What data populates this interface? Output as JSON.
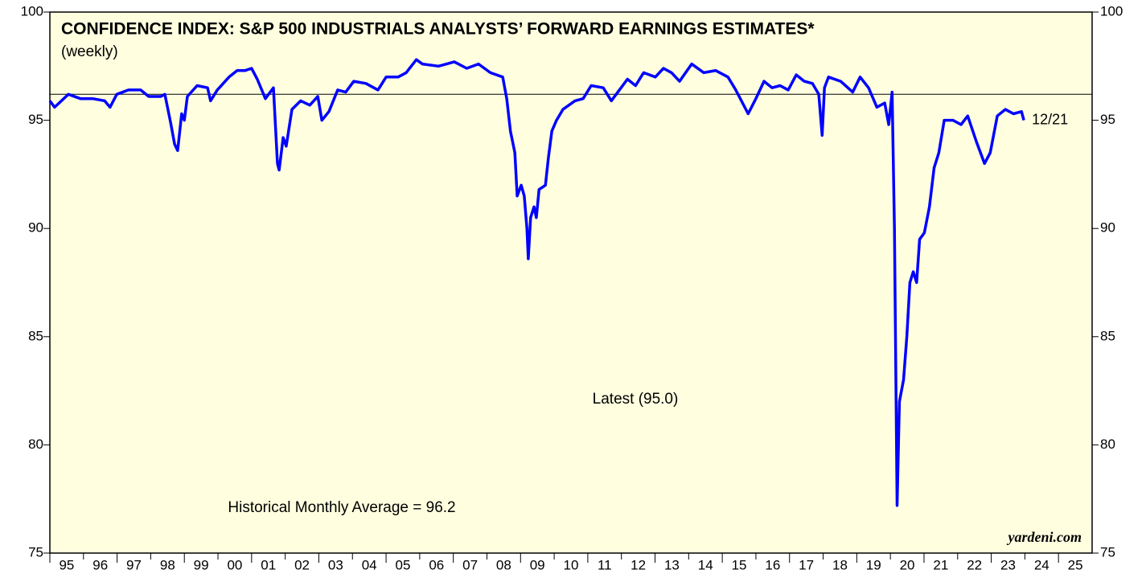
{
  "chart_data": {
    "type": "line",
    "title": "CONFIDENCE INDEX: S&P 500 INDUSTRIALS ANALYSTS’ FORWARD EARNINGS ESTIMATES*",
    "subtitle": "(weekly)",
    "latest_label": "Latest (95.0)",
    "average": 96.2,
    "average_label": "Historical Monthly Average = 96.2",
    "end_label": "12/21",
    "source": "yardeni.com",
    "color": "#0000ff",
    "xlim": [
      1995,
      2026
    ],
    "ylim": [
      75,
      100
    ],
    "yticks": [
      75,
      80,
      85,
      90,
      95,
      100
    ],
    "xticks": [
      {
        "value": 1995,
        "label": "95"
      },
      {
        "value": 1996,
        "label": "96"
      },
      {
        "value": 1997,
        "label": "97"
      },
      {
        "value": 1998,
        "label": "98"
      },
      {
        "value": 1999,
        "label": "99"
      },
      {
        "value": 2000,
        "label": "00"
      },
      {
        "value": 2001,
        "label": "01"
      },
      {
        "value": 2002,
        "label": "02"
      },
      {
        "value": 2003,
        "label": "03"
      },
      {
        "value": 2004,
        "label": "04"
      },
      {
        "value": 2005,
        "label": "05"
      },
      {
        "value": 2006,
        "label": "06"
      },
      {
        "value": 2007,
        "label": "07"
      },
      {
        "value": 2008,
        "label": "08"
      },
      {
        "value": 2009,
        "label": "09"
      },
      {
        "value": 2010,
        "label": "10"
      },
      {
        "value": 2011,
        "label": "11"
      },
      {
        "value": 2012,
        "label": "12"
      },
      {
        "value": 2013,
        "label": "13"
      },
      {
        "value": 2014,
        "label": "14"
      },
      {
        "value": 2015,
        "label": "15"
      },
      {
        "value": 2016,
        "label": "16"
      },
      {
        "value": 2017,
        "label": "17"
      },
      {
        "value": 2018,
        "label": "18"
      },
      {
        "value": 2019,
        "label": "19"
      },
      {
        "value": 2020,
        "label": "20"
      },
      {
        "value": 2021,
        "label": "21"
      },
      {
        "value": 2022,
        "label": "22"
      },
      {
        "value": 2023,
        "label": "23"
      },
      {
        "value": 2024,
        "label": "24"
      },
      {
        "value": 2025,
        "label": "25"
      }
    ],
    "x": [
      1995.0,
      1995.14,
      1995.55,
      1995.91,
      1996.27,
      1996.63,
      1996.79,
      1996.99,
      1997.34,
      1997.7,
      1997.94,
      1998.3,
      1998.42,
      1998.59,
      1998.71,
      1998.8,
      1998.92,
      1999.0,
      1999.09,
      1999.38,
      1999.69,
      1999.78,
      1999.98,
      2000.33,
      2000.57,
      2000.81,
      2001.0,
      2001.17,
      2001.41,
      2001.65,
      2001.77,
      2001.82,
      2001.94,
      2002.03,
      2002.2,
      2002.46,
      2002.73,
      2002.97,
      2003.09,
      2003.3,
      2003.56,
      2003.8,
      2004.04,
      2004.4,
      2004.76,
      2005.0,
      2005.36,
      2005.6,
      2005.9,
      2006.08,
      2006.56,
      2007.03,
      2007.4,
      2007.75,
      2008.1,
      2008.47,
      2008.59,
      2008.7,
      2008.83,
      2008.9,
      2009.02,
      2009.11,
      2009.19,
      2009.23,
      2009.3,
      2009.4,
      2009.47,
      2009.55,
      2009.74,
      2009.83,
      2009.93,
      2010.07,
      2010.26,
      2010.62,
      2010.86,
      2011.1,
      2011.46,
      2011.7,
      2011.94,
      2012.18,
      2012.42,
      2012.66,
      2013.01,
      2013.25,
      2013.49,
      2013.73,
      2014.09,
      2014.45,
      2014.8,
      2015.17,
      2015.4,
      2015.77,
      2016.0,
      2016.24,
      2016.48,
      2016.72,
      2016.96,
      2017.2,
      2017.44,
      2017.68,
      2017.87,
      2017.97,
      2018.04,
      2018.16,
      2018.52,
      2018.88,
      2019.1,
      2019.35,
      2019.6,
      2019.83,
      2019.95,
      2020.05,
      2020.12,
      2020.2,
      2020.27,
      2020.39,
      2020.49,
      2020.58,
      2020.68,
      2020.78,
      2020.87,
      2021.01,
      2021.16,
      2021.3,
      2021.44,
      2021.6,
      2021.86,
      2022.1,
      2022.3,
      2022.56,
      2022.8,
      2022.97,
      2023.18,
      2023.42,
      2023.66,
      2023.9,
      2023.97
    ],
    "values": [
      95.9,
      95.6,
      96.2,
      96.0,
      96.0,
      95.9,
      95.6,
      96.2,
      96.4,
      96.4,
      96.1,
      96.1,
      96.2,
      94.9,
      93.9,
      93.6,
      95.3,
      95.0,
      96.1,
      96.6,
      96.5,
      95.9,
      96.4,
      97.0,
      97.3,
      97.3,
      97.4,
      96.9,
      96.0,
      96.5,
      93.0,
      92.7,
      94.2,
      93.8,
      95.5,
      95.9,
      95.7,
      96.1,
      95.0,
      95.4,
      96.4,
      96.3,
      96.8,
      96.7,
      96.4,
      97.0,
      97.0,
      97.2,
      97.8,
      97.6,
      97.5,
      97.7,
      97.4,
      97.6,
      97.2,
      97.0,
      96.0,
      94.5,
      93.5,
      91.5,
      92.0,
      91.5,
      90.0,
      88.6,
      90.5,
      91.0,
      90.5,
      91.8,
      92.0,
      93.3,
      94.5,
      95.0,
      95.5,
      95.9,
      96.0,
      96.6,
      96.5,
      95.9,
      96.4,
      96.9,
      96.6,
      97.2,
      97.0,
      97.4,
      97.2,
      96.8,
      97.6,
      97.2,
      97.3,
      97.0,
      96.4,
      95.3,
      96.0,
      96.8,
      96.5,
      96.6,
      96.4,
      97.1,
      96.8,
      96.7,
      96.2,
      94.3,
      96.5,
      97.0,
      96.8,
      96.3,
      97.0,
      96.5,
      95.6,
      95.8,
      94.8,
      96.3,
      90.0,
      77.2,
      82.0,
      83.0,
      85.0,
      87.5,
      88.0,
      87.5,
      89.5,
      89.8,
      91.0,
      92.8,
      93.5,
      95.0,
      95.0,
      94.8,
      95.2,
      94.0,
      93.0,
      93.5,
      95.2,
      95.5,
      95.3,
      95.4,
      95.0
    ]
  }
}
